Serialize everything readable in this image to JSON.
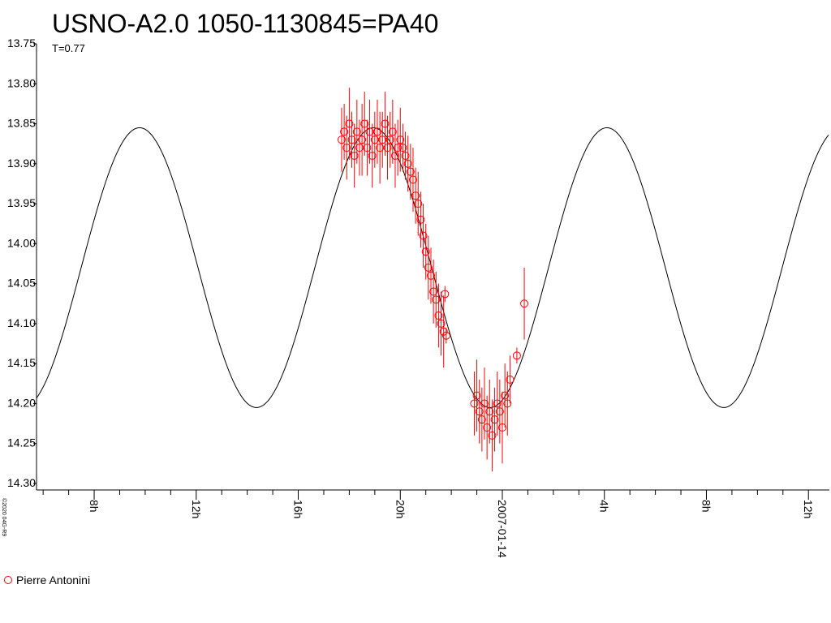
{
  "chart_data": {
    "type": "scatter",
    "title": "USNO-A2.0 1050-1130845=PA40",
    "subtitle": "T=0.77",
    "credit": "©2020 04G-R9",
    "xlim": [
      5.74,
      36.82
    ],
    "xticks": [
      {
        "value": 8,
        "label": "8h"
      },
      {
        "value": 12,
        "label": "12h"
      },
      {
        "value": 16,
        "label": "16h"
      },
      {
        "value": 20,
        "label": "20h"
      },
      {
        "value": 24,
        "label": "2007-01-14"
      },
      {
        "value": 28,
        "label": "4h"
      },
      {
        "value": 32,
        "label": "8h"
      },
      {
        "value": 36,
        "label": "12h"
      }
    ],
    "xminorticks": [
      6,
      7,
      9,
      10,
      11,
      13,
      14,
      15,
      17,
      18,
      19,
      21,
      22,
      23,
      25,
      26,
      27,
      29,
      30,
      31,
      33,
      34,
      35
    ],
    "ylim": [
      13.75,
      14.3
    ],
    "y_reversed": true,
    "yticks": [
      13.75,
      {
        "value": 13.8,
        "label": "13.80"
      },
      13.85,
      {
        "value": 13.9,
        "label": "13.90"
      },
      13.95,
      {
        "value": 14.0,
        "label": "14.00"
      },
      14.05,
      {
        "value": 14.1,
        "label": "14.10"
      },
      14.15,
      {
        "value": 14.2,
        "label": "14.20"
      },
      14.25,
      {
        "value": 14.3,
        "label": "14.30"
      }
    ],
    "model": {
      "color": "#000000",
      "brightest": 13.855,
      "faintest": 14.205,
      "peak_x": 18.94,
      "period": 9.16
    },
    "series": [
      {
        "name": "Pierre Antonini",
        "color": "#ff0000",
        "x": [
          17.7,
          17.8,
          17.9,
          18.0,
          18.1,
          18.2,
          18.3,
          18.4,
          18.5,
          18.6,
          18.7,
          18.8,
          18.9,
          19.0,
          19.1,
          19.2,
          19.3,
          19.4,
          19.5,
          19.6,
          19.7,
          19.8,
          19.9,
          20.0,
          20.1,
          20.2,
          20.3,
          20.4,
          20.5,
          20.6,
          20.7,
          20.8,
          20.9,
          21.0,
          21.1,
          21.2,
          21.3,
          21.4,
          21.5,
          21.6,
          21.7,
          21.75,
          21.8,
          22.9,
          23.0,
          23.1,
          23.2,
          23.3,
          23.4,
          23.5,
          23.6,
          23.7,
          23.8,
          23.9,
          24.0,
          24.1,
          24.2,
          24.3,
          24.57,
          24.86
        ],
        "values": [
          13.87,
          13.86,
          13.88,
          13.85,
          13.87,
          13.89,
          13.86,
          13.88,
          13.87,
          13.85,
          13.88,
          13.86,
          13.89,
          13.87,
          13.86,
          13.88,
          13.87,
          13.85,
          13.88,
          13.87,
          13.86,
          13.89,
          13.88,
          13.87,
          13.88,
          13.89,
          13.9,
          13.91,
          13.92,
          13.94,
          13.95,
          13.97,
          13.99,
          14.01,
          14.03,
          14.04,
          14.06,
          14.07,
          14.09,
          14.1,
          14.11,
          14.063,
          14.115,
          14.2,
          14.19,
          14.21,
          14.22,
          14.2,
          14.23,
          14.21,
          14.24,
          14.22,
          14.2,
          14.21,
          14.23,
          14.19,
          14.2,
          14.17,
          14.14,
          14.075
        ],
        "errors": [
          0.04,
          0.035,
          0.04,
          0.045,
          0.035,
          0.04,
          0.04,
          0.035,
          0.045,
          0.04,
          0.035,
          0.04,
          0.04,
          0.035,
          0.04,
          0.045,
          0.035,
          0.04,
          0.04,
          0.035,
          0.04,
          0.04,
          0.035,
          0.04,
          0.03,
          0.03,
          0.035,
          0.035,
          0.04,
          0.035,
          0.04,
          0.035,
          0.04,
          0.035,
          0.04,
          0.035,
          0.04,
          0.035,
          0.04,
          0.04,
          0.045,
          0.01,
          0.01,
          0.04,
          0.045,
          0.04,
          0.04,
          0.045,
          0.04,
          0.04,
          0.045,
          0.04,
          0.04,
          0.04,
          0.045,
          0.04,
          0.04,
          0.03,
          0.01,
          0.045
        ]
      }
    ]
  }
}
